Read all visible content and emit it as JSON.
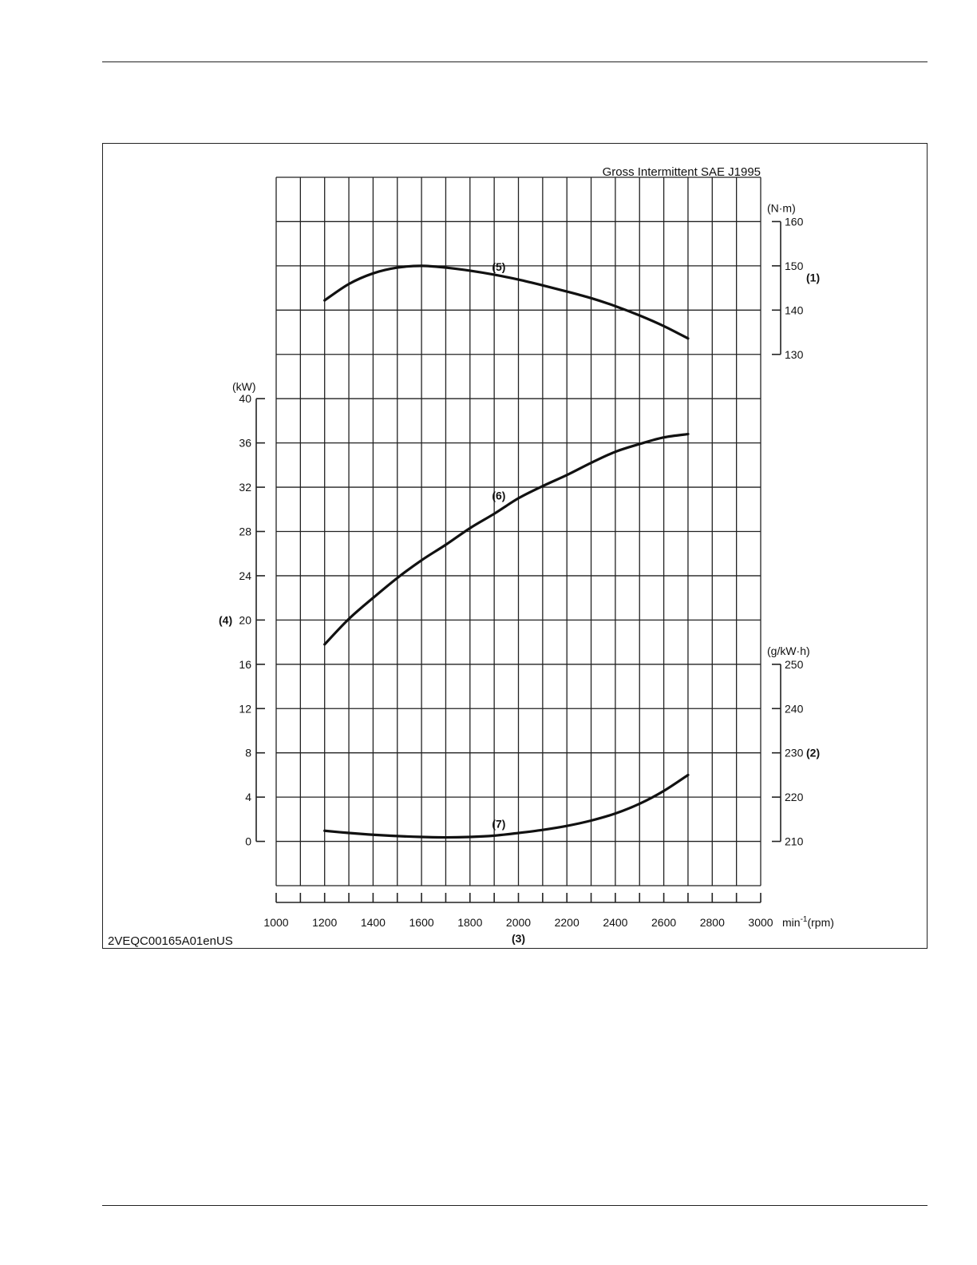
{
  "figure_code": "2VEQC00165A01enUS",
  "chart_data": {
    "type": "line",
    "title": "Gross Intermittent SAE J1995",
    "x_axis": {
      "label_unit": "min",
      "label_unit_sup": "-1",
      "label_unit_tail": "(rpm)",
      "callout": "(3)",
      "range": [
        1000,
        3000
      ],
      "ticks": [
        1000,
        1200,
        1400,
        1600,
        1800,
        2000,
        2200,
        2400,
        2600,
        2800,
        3000
      ]
    },
    "axes": {
      "power": {
        "unit": "(kW)",
        "callout": "(4)",
        "range": [
          0,
          40
        ],
        "ticks": [
          0,
          4,
          8,
          12,
          16,
          20,
          24,
          28,
          32,
          36,
          40
        ],
        "side": "left"
      },
      "torque": {
        "unit": "(N·m)",
        "callout": "(1)",
        "range": [
          130,
          160
        ],
        "ticks": [
          130,
          140,
          150,
          160
        ],
        "side": "right"
      },
      "fuel": {
        "unit": "(g/kW·h)",
        "callout": "(2)",
        "range": [
          210,
          250
        ],
        "ticks": [
          210,
          220,
          230,
          240,
          250
        ],
        "side": "right"
      }
    },
    "series": [
      {
        "callout": "(5)",
        "axis": "torque",
        "x": [
          1200,
          1300,
          1400,
          1500,
          1600,
          1700,
          1800,
          1900,
          2000,
          2100,
          2200,
          2300,
          2400,
          2500,
          2600,
          2700
        ],
        "y": [
          142.2,
          145.9,
          148.3,
          149.6,
          150.0,
          149.6,
          148.9,
          148.0,
          146.9,
          145.6,
          144.2,
          142.7,
          140.9,
          138.8,
          136.4,
          133.6
        ]
      },
      {
        "callout": "(6)",
        "axis": "power",
        "x": [
          1200,
          1300,
          1400,
          1500,
          1600,
          1700,
          1800,
          1900,
          2000,
          2100,
          2200,
          2300,
          2400,
          2500,
          2600,
          2700
        ],
        "y": [
          17.8,
          20.1,
          22.0,
          23.8,
          25.4,
          26.8,
          28.3,
          29.6,
          31.0,
          32.1,
          33.1,
          34.2,
          35.2,
          35.9,
          36.5,
          36.8
        ]
      },
      {
        "callout": "(7)",
        "axis": "fuel",
        "x": [
          1200,
          1300,
          1400,
          1500,
          1600,
          1700,
          1800,
          1900,
          2000,
          2100,
          2200,
          2300,
          2400,
          2500,
          2600,
          2700
        ],
        "y": [
          212.4,
          211.9,
          211.5,
          211.2,
          211.0,
          210.9,
          211.0,
          211.3,
          211.9,
          212.6,
          213.5,
          214.7,
          216.3,
          218.5,
          221.4,
          225.0
        ]
      }
    ],
    "grid": true
  }
}
